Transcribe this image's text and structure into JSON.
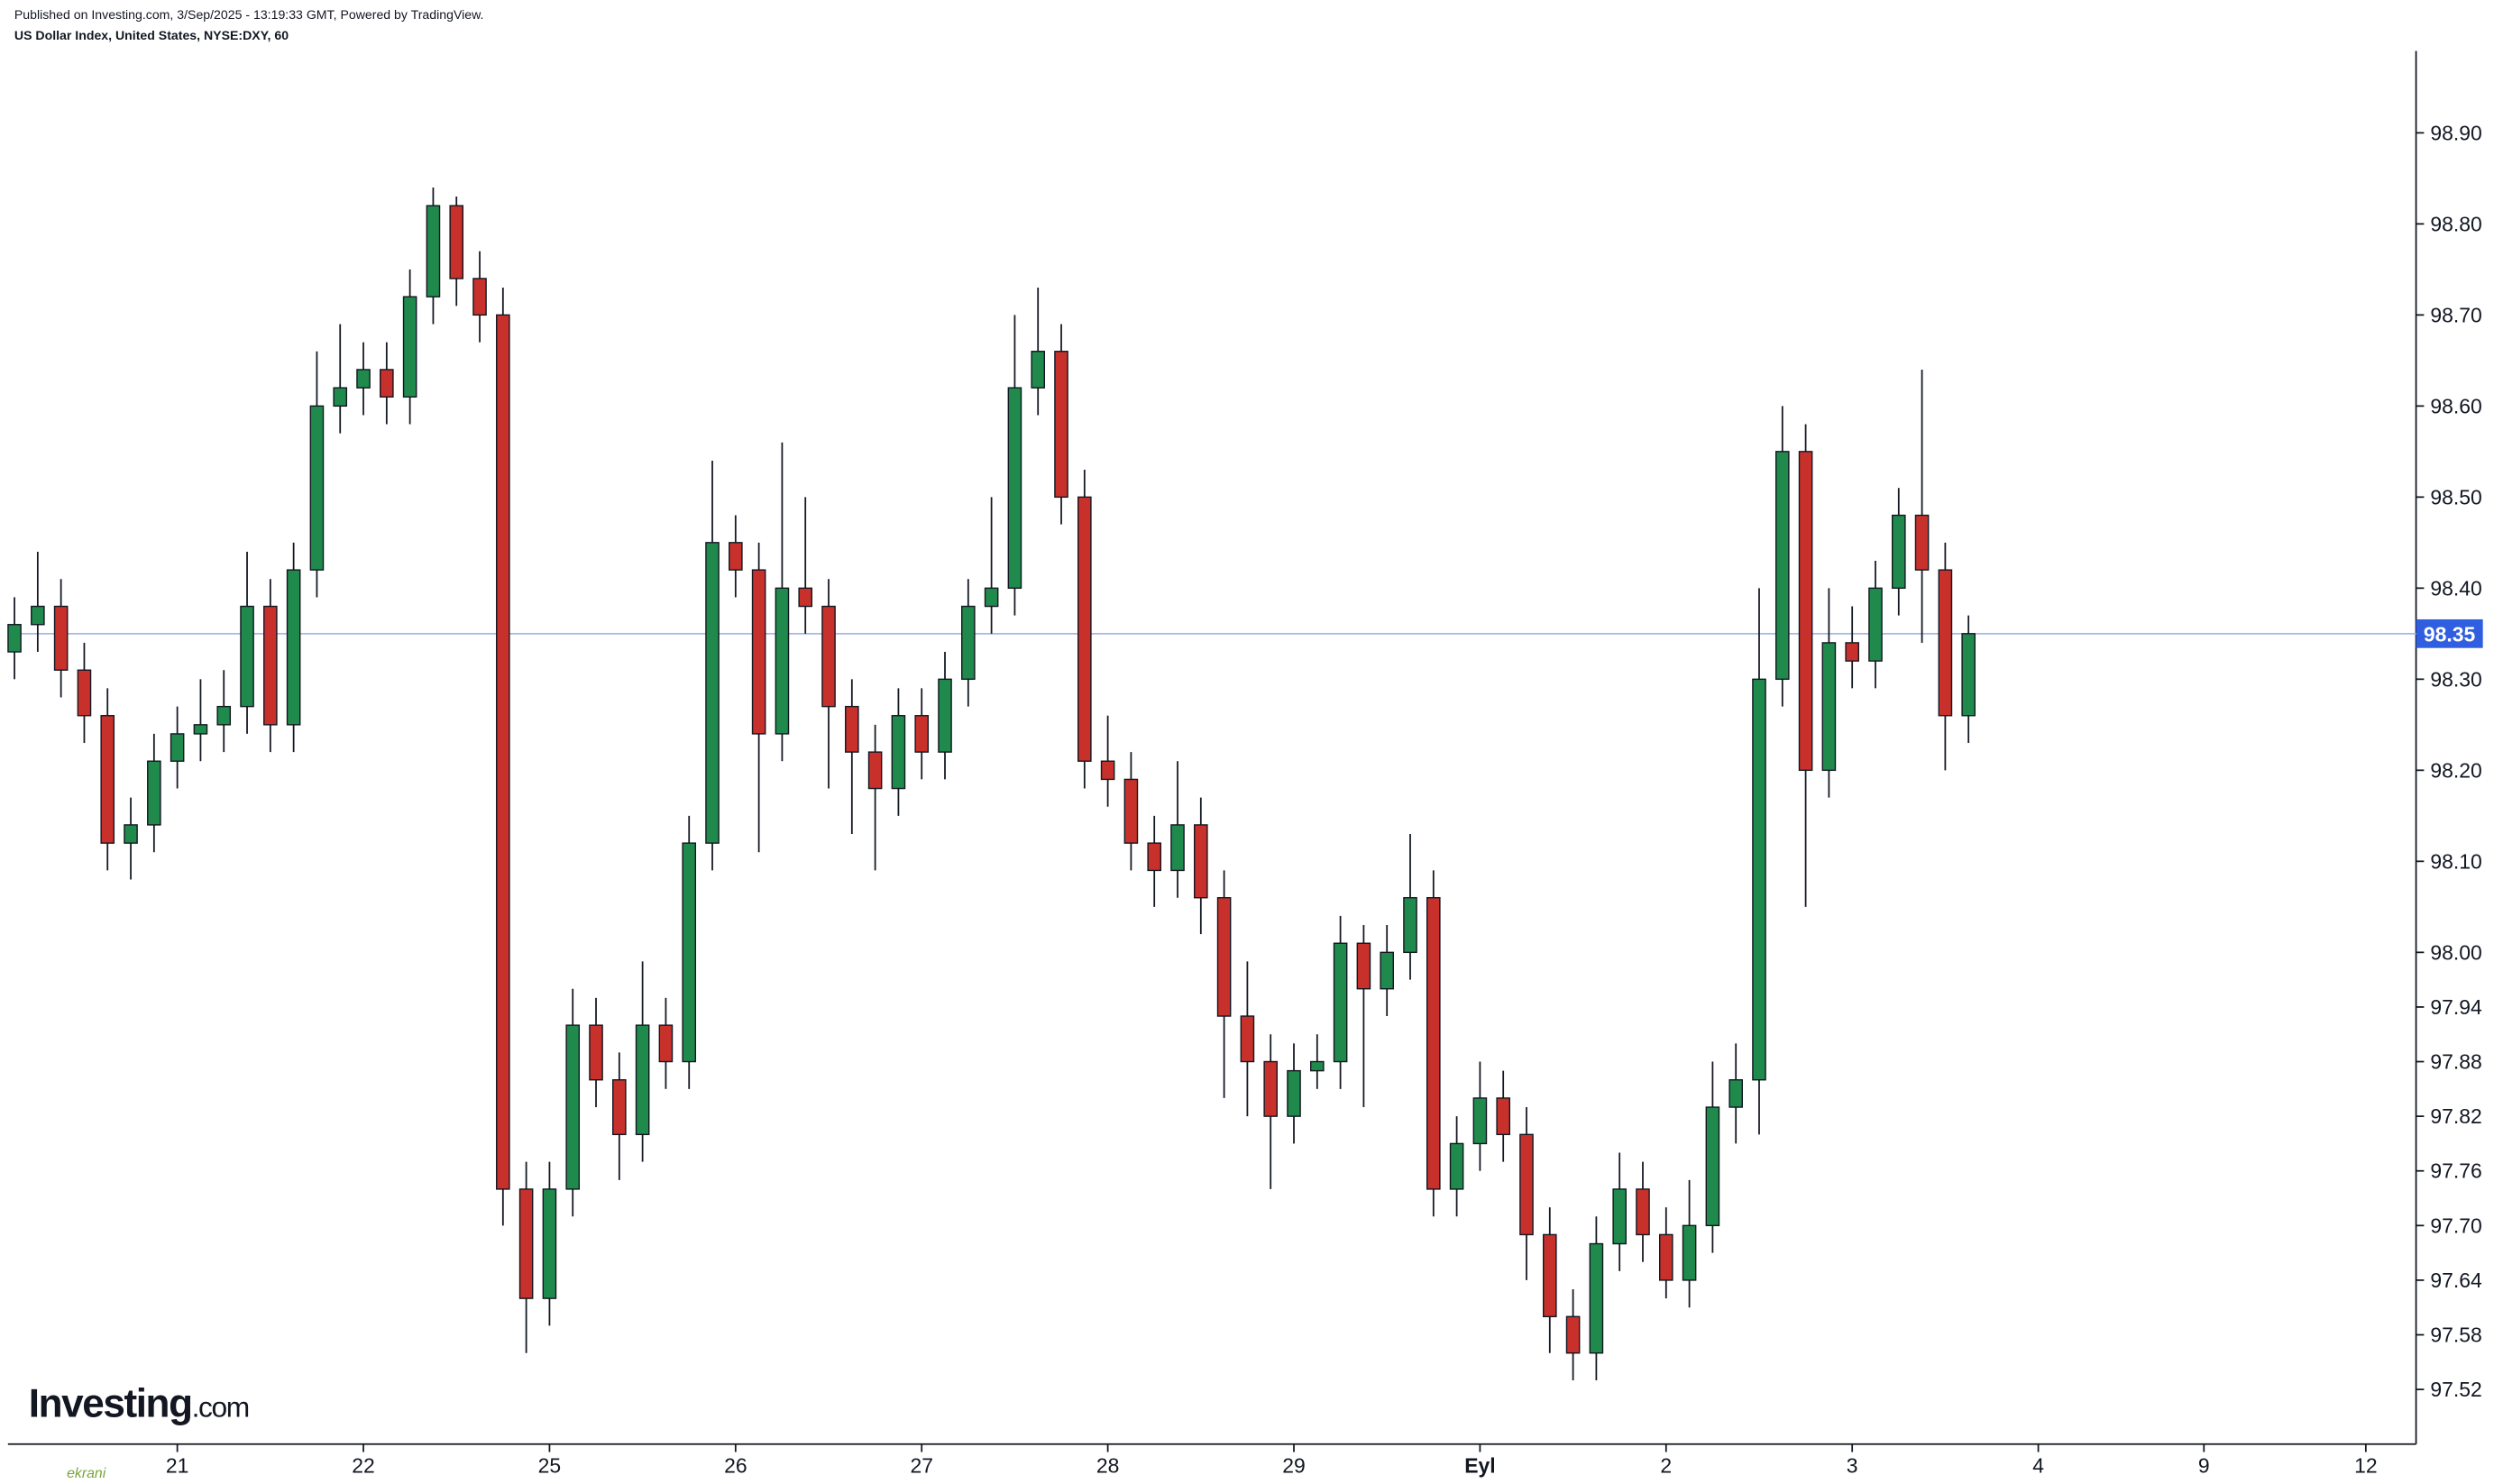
{
  "chart_data": {
    "type": "candlestick",
    "subtitle": "Published on Investing.com, 3/Sep/2025 - 13:19:33 GMT, Powered by TradingView.",
    "title": "US Dollar Index, United States, NYSE:DXY, 60",
    "logo": {
      "brand": "Investing",
      "suffix": ".com"
    },
    "watermark": "ekrani",
    "up_color": "#1f8a4c",
    "down_color": "#c8312b",
    "last_price": 98.35,
    "last_price_color": "#2f5fe0",
    "x": [
      0.125,
      0.25,
      0.375,
      0.5,
      0.625,
      0.75,
      0.875,
      1,
      1.125,
      1.25,
      1.375,
      1.5,
      1.625,
      1.75,
      1.875,
      2,
      2.125,
      2.25,
      2.375,
      2.5,
      2.625,
      2.75,
      2.875,
      3,
      3.125,
      3.25,
      3.375,
      3.5,
      3.625,
      3.75,
      3.875,
      4,
      4.125,
      4.25,
      4.375,
      4.5,
      4.625,
      4.75,
      4.875,
      5,
      5.125,
      5.25,
      5.375,
      5.5,
      5.625,
      5.75,
      5.875,
      6,
      6.125,
      6.25,
      6.375,
      6.5,
      6.625,
      6.75,
      6.875,
      7,
      7.125,
      7.25,
      7.375,
      7.5,
      7.625,
      7.75,
      7.875,
      8,
      8.125,
      8.25,
      8.375,
      8.5,
      8.625,
      8.75,
      8.875,
      9,
      9.125,
      9.25,
      9.375,
      9.5,
      9.625,
      9.75,
      9.875,
      10,
      10.125,
      10.25,
      10.375,
      10.5,
      10.625
    ],
    "open": [
      98.33,
      98.36,
      98.38,
      98.31,
      98.26,
      98.12,
      98.14,
      98.21,
      98.24,
      98.25,
      98.27,
      98.38,
      98.25,
      98.42,
      98.6,
      98.62,
      98.64,
      98.61,
      98.72,
      98.82,
      98.74,
      98.7,
      97.74,
      97.62,
      97.74,
      97.92,
      97.86,
      97.8,
      97.92,
      97.88,
      98.12,
      98.45,
      98.42,
      98.24,
      98.4,
      98.38,
      98.27,
      98.22,
      98.18,
      98.26,
      98.22,
      98.3,
      98.38,
      98.4,
      98.62,
      98.66,
      98.5,
      98.21,
      98.19,
      98.12,
      98.09,
      98.14,
      98.06,
      97.93,
      97.88,
      97.82,
      97.87,
      97.88,
      98.01,
      97.96,
      98.0,
      98.06,
      97.74,
      97.79,
      97.84,
      97.8,
      97.69,
      97.6,
      97.56,
      97.68,
      97.74,
      97.69,
      97.64,
      97.7,
      97.83,
      97.86,
      98.3,
      98.55,
      98.2,
      98.34,
      98.32,
      98.4,
      98.48,
      98.42,
      98.26
    ],
    "high": [
      98.39,
      98.44,
      98.41,
      98.34,
      98.29,
      98.17,
      98.24,
      98.27,
      98.3,
      98.31,
      98.44,
      98.41,
      98.45,
      98.66,
      98.69,
      98.67,
      98.67,
      98.75,
      98.84,
      98.83,
      98.77,
      98.73,
      97.77,
      97.77,
      97.96,
      97.95,
      97.89,
      97.99,
      97.95,
      98.15,
      98.54,
      98.48,
      98.45,
      98.56,
      98.5,
      98.41,
      98.3,
      98.25,
      98.29,
      98.29,
      98.33,
      98.41,
      98.5,
      98.7,
      98.73,
      98.69,
      98.53,
      98.26,
      98.22,
      98.15,
      98.21,
      98.17,
      98.09,
      97.99,
      97.91,
      97.9,
      97.91,
      98.04,
      98.03,
      98.03,
      98.13,
      98.09,
      97.82,
      97.88,
      97.87,
      97.83,
      97.72,
      97.63,
      97.71,
      97.78,
      97.77,
      97.72,
      97.75,
      97.88,
      97.9,
      98.4,
      98.6,
      98.58,
      98.4,
      98.38,
      98.43,
      98.51,
      98.64,
      98.45,
      98.37
    ],
    "low": [
      98.3,
      98.33,
      98.28,
      98.23,
      98.09,
      98.08,
      98.11,
      98.18,
      98.21,
      98.22,
      98.24,
      98.22,
      98.22,
      98.39,
      98.57,
      98.59,
      98.58,
      98.58,
      98.69,
      98.71,
      98.67,
      97.7,
      97.56,
      97.59,
      97.71,
      97.83,
      97.75,
      97.77,
      97.85,
      97.85,
      98.09,
      98.39,
      98.11,
      98.21,
      98.35,
      98.18,
      98.13,
      98.09,
      98.15,
      98.19,
      98.19,
      98.27,
      98.35,
      98.37,
      98.59,
      98.47,
      98.18,
      98.16,
      98.09,
      98.05,
      98.06,
      98.02,
      97.84,
      97.82,
      97.74,
      97.79,
      97.85,
      97.85,
      97.83,
      97.93,
      97.97,
      97.71,
      97.71,
      97.76,
      97.77,
      97.64,
      97.56,
      97.53,
      97.53,
      97.65,
      97.66,
      97.62,
      97.61,
      97.67,
      97.79,
      97.8,
      98.27,
      98.05,
      98.17,
      98.29,
      98.29,
      98.37,
      98.34,
      98.2,
      98.23
    ],
    "close": [
      98.36,
      98.38,
      98.31,
      98.26,
      98.12,
      98.14,
      98.21,
      98.24,
      98.25,
      98.27,
      98.38,
      98.25,
      98.42,
      98.6,
      98.62,
      98.64,
      98.61,
      98.72,
      98.82,
      98.74,
      98.7,
      97.74,
      97.62,
      97.74,
      97.92,
      97.86,
      97.8,
      97.92,
      97.88,
      98.12,
      98.45,
      98.42,
      98.24,
      98.4,
      98.38,
      98.27,
      98.22,
      98.18,
      98.26,
      98.22,
      98.3,
      98.38,
      98.4,
      98.62,
      98.66,
      98.5,
      98.21,
      98.19,
      98.12,
      98.09,
      98.14,
      98.06,
      97.93,
      97.88,
      97.82,
      97.87,
      97.88,
      98.01,
      97.96,
      98.0,
      98.06,
      97.74,
      97.79,
      97.84,
      97.8,
      97.69,
      97.6,
      97.56,
      97.68,
      97.74,
      97.69,
      97.64,
      97.7,
      97.83,
      97.86,
      98.3,
      98.55,
      98.2,
      98.34,
      98.32,
      98.4,
      98.48,
      98.42,
      98.26,
      98.35
    ],
    "xlim": [
      0.09,
      13.03
    ],
    "xticks": [
      {
        "value": 1,
        "label": "21"
      },
      {
        "value": 2,
        "label": "22"
      },
      {
        "value": 3,
        "label": "25"
      },
      {
        "value": 4,
        "label": "26"
      },
      {
        "value": 5,
        "label": "27"
      },
      {
        "value": 6,
        "label": "28"
      },
      {
        "value": 7,
        "label": "29"
      },
      {
        "value": 8,
        "label": "Eyl"
      },
      {
        "value": 9,
        "label": "2"
      },
      {
        "value": 10,
        "label": "3"
      },
      {
        "value": 11,
        "label": "4"
      },
      {
        "value": 11.89,
        "label": "9"
      },
      {
        "value": 12.76,
        "label": "12"
      }
    ],
    "ylim": [
      97.46,
      98.99
    ],
    "yticks": [
      {
        "value": 98.9,
        "label": "98.90"
      },
      {
        "value": 98.8,
        "label": "98.80"
      },
      {
        "value": 98.7,
        "label": "98.70"
      },
      {
        "value": 98.6,
        "label": "98.60"
      },
      {
        "value": 98.5,
        "label": "98.50"
      },
      {
        "value": 98.4,
        "label": "98.40"
      },
      {
        "value": 98.3,
        "label": "98.30"
      },
      {
        "value": 98.2,
        "label": "98.20"
      },
      {
        "value": 98.1,
        "label": "98.10"
      },
      {
        "value": 98.0,
        "label": "98.00"
      },
      97.94,
      97.88,
      97.82,
      97.76,
      {
        "value": 97.7,
        "label": "97.70"
      },
      97.64,
      97.58,
      97.52
    ]
  }
}
